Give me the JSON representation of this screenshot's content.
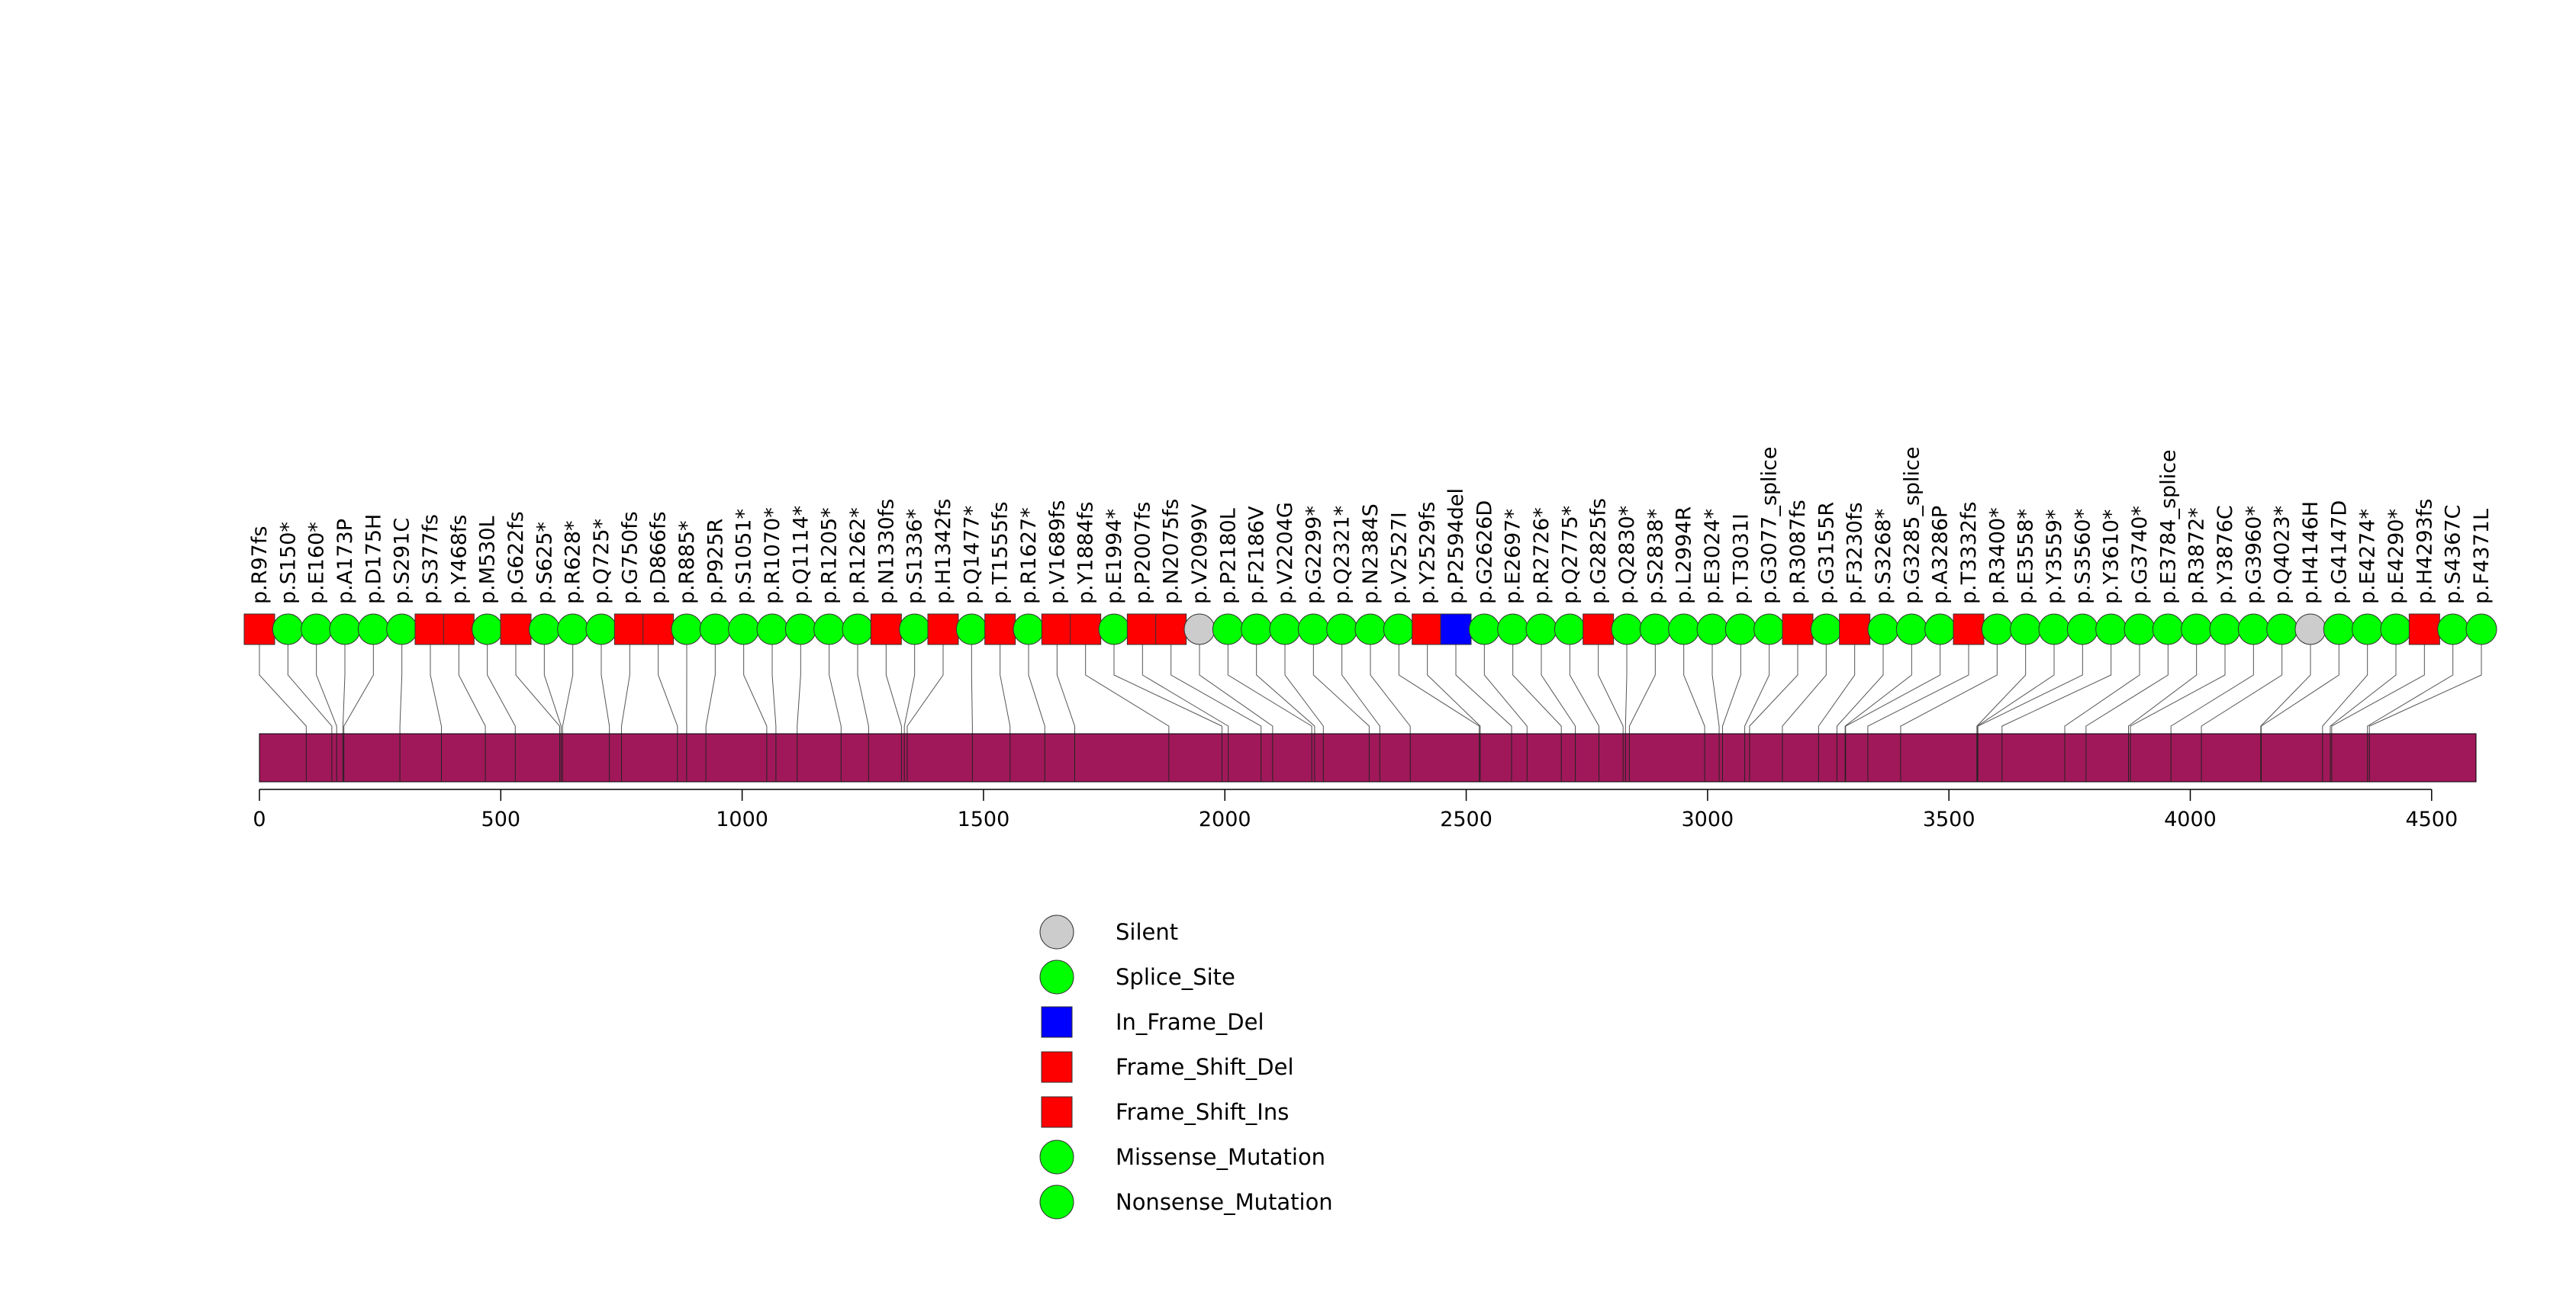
{
  "chart_data": {
    "type": "lollipop",
    "protein_length": 4592,
    "x_axis": {
      "ticks": [
        0,
        500,
        1000,
        1500,
        2000,
        2500,
        3000,
        3500,
        4000,
        4500
      ],
      "xlim": [
        0,
        4592
      ]
    },
    "colors": {
      "domain_bar": "#A0185A",
      "Silent": "#CCCCCC",
      "Splice_Site": "#00FF00",
      "In_Frame_Del": "#0000FF",
      "Frame_Shift_Del": "#FF0000",
      "Frame_Shift_Ins": "#FF0000",
      "Missense_Mutation": "#00FF00",
      "Nonsense_Mutation": "#00FF00"
    },
    "legend": [
      {
        "label": "Silent",
        "shape": "circle",
        "color": "#CCCCCC"
      },
      {
        "label": "Splice_Site",
        "shape": "circle",
        "color": "#00FF00"
      },
      {
        "label": "In_Frame_Del",
        "shape": "square",
        "color": "#0000FF"
      },
      {
        "label": "Frame_Shift_Del",
        "shape": "square",
        "color": "#FF0000"
      },
      {
        "label": "Frame_Shift_Ins",
        "shape": "square",
        "color": "#FF0000"
      },
      {
        "label": "Missense_Mutation",
        "shape": "circle",
        "color": "#00FF00"
      },
      {
        "label": "Nonsense_Mutation",
        "shape": "circle",
        "color": "#00FF00"
      }
    ],
    "mutations": [
      {
        "label": "p.R97fs",
        "pos": 97,
        "type": "Frame_Shift_Del"
      },
      {
        "label": "p.S150*",
        "pos": 150,
        "type": "Nonsense_Mutation"
      },
      {
        "label": "p.E160*",
        "pos": 160,
        "type": "Nonsense_Mutation"
      },
      {
        "label": "p.A173P",
        "pos": 173,
        "type": "Missense_Mutation"
      },
      {
        "label": "p.D175H",
        "pos": 175,
        "type": "Missense_Mutation"
      },
      {
        "label": "p.S291C",
        "pos": 291,
        "type": "Missense_Mutation"
      },
      {
        "label": "p.S377fs",
        "pos": 377,
        "type": "Frame_Shift_Del"
      },
      {
        "label": "p.Y468fs",
        "pos": 468,
        "type": "Frame_Shift_Ins"
      },
      {
        "label": "p.M530L",
        "pos": 530,
        "type": "Missense_Mutation"
      },
      {
        "label": "p.G622fs",
        "pos": 622,
        "type": "Frame_Shift_Del"
      },
      {
        "label": "p.S625*",
        "pos": 625,
        "type": "Nonsense_Mutation"
      },
      {
        "label": "p.R628*",
        "pos": 628,
        "type": "Nonsense_Mutation"
      },
      {
        "label": "p.Q725*",
        "pos": 725,
        "type": "Nonsense_Mutation"
      },
      {
        "label": "p.G750fs",
        "pos": 750,
        "type": "Frame_Shift_Del"
      },
      {
        "label": "p.D866fs",
        "pos": 866,
        "type": "Frame_Shift_Del"
      },
      {
        "label": "p.R885*",
        "pos": 885,
        "type": "Nonsense_Mutation"
      },
      {
        "label": "p.P925R",
        "pos": 925,
        "type": "Missense_Mutation"
      },
      {
        "label": "p.S1051*",
        "pos": 1051,
        "type": "Nonsense_Mutation"
      },
      {
        "label": "p.R1070*",
        "pos": 1070,
        "type": "Nonsense_Mutation"
      },
      {
        "label": "p.Q1114*",
        "pos": 1114,
        "type": "Nonsense_Mutation"
      },
      {
        "label": "p.R1205*",
        "pos": 1205,
        "type": "Nonsense_Mutation"
      },
      {
        "label": "p.R1262*",
        "pos": 1262,
        "type": "Nonsense_Mutation"
      },
      {
        "label": "p.N1330fs",
        "pos": 1330,
        "type": "Frame_Shift_Del"
      },
      {
        "label": "p.S1336*",
        "pos": 1336,
        "type": "Nonsense_Mutation"
      },
      {
        "label": "p.H1342fs",
        "pos": 1342,
        "type": "Frame_Shift_Del"
      },
      {
        "label": "p.Q1477*",
        "pos": 1477,
        "type": "Nonsense_Mutation"
      },
      {
        "label": "p.T1555fs",
        "pos": 1555,
        "type": "Frame_Shift_Del"
      },
      {
        "label": "p.R1627*",
        "pos": 1627,
        "type": "Nonsense_Mutation"
      },
      {
        "label": "p.V1689fs",
        "pos": 1689,
        "type": "Frame_Shift_Del"
      },
      {
        "label": "p.Y1884fs",
        "pos": 1884,
        "type": "Frame_Shift_Ins"
      },
      {
        "label": "p.E1994*",
        "pos": 1994,
        "type": "Nonsense_Mutation"
      },
      {
        "label": "p.P2007fs",
        "pos": 2007,
        "type": "Frame_Shift_Del"
      },
      {
        "label": "p.N2075fs",
        "pos": 2075,
        "type": "Frame_Shift_Del"
      },
      {
        "label": "p.V2099V",
        "pos": 2099,
        "type": "Silent"
      },
      {
        "label": "p.P2180L",
        "pos": 2180,
        "type": "Missense_Mutation"
      },
      {
        "label": "p.F2186V",
        "pos": 2186,
        "type": "Missense_Mutation"
      },
      {
        "label": "p.V2204G",
        "pos": 2204,
        "type": "Missense_Mutation"
      },
      {
        "label": "p.G2299*",
        "pos": 2299,
        "type": "Nonsense_Mutation"
      },
      {
        "label": "p.Q2321*",
        "pos": 2321,
        "type": "Nonsense_Mutation"
      },
      {
        "label": "p.N2384S",
        "pos": 2384,
        "type": "Missense_Mutation"
      },
      {
        "label": "p.V2527I",
        "pos": 2527,
        "type": "Missense_Mutation"
      },
      {
        "label": "p.Y2529fs",
        "pos": 2529,
        "type": "Frame_Shift_Del"
      },
      {
        "label": "p.P2594del",
        "pos": 2594,
        "type": "In_Frame_Del"
      },
      {
        "label": "p.G2626D",
        "pos": 2626,
        "type": "Missense_Mutation"
      },
      {
        "label": "p.E2697*",
        "pos": 2697,
        "type": "Nonsense_Mutation"
      },
      {
        "label": "p.R2726*",
        "pos": 2726,
        "type": "Nonsense_Mutation"
      },
      {
        "label": "p.Q2775*",
        "pos": 2775,
        "type": "Nonsense_Mutation"
      },
      {
        "label": "p.G2825fs",
        "pos": 2825,
        "type": "Frame_Shift_Del"
      },
      {
        "label": "p.Q2830*",
        "pos": 2830,
        "type": "Nonsense_Mutation"
      },
      {
        "label": "p.S2838*",
        "pos": 2838,
        "type": "Nonsense_Mutation"
      },
      {
        "label": "p.L2994R",
        "pos": 2994,
        "type": "Missense_Mutation"
      },
      {
        "label": "p.E3024*",
        "pos": 3024,
        "type": "Nonsense_Mutation"
      },
      {
        "label": "p.T3031I",
        "pos": 3031,
        "type": "Missense_Mutation"
      },
      {
        "label": "p.G3077_splice",
        "pos": 3077,
        "type": "Splice_Site"
      },
      {
        "label": "p.R3087fs",
        "pos": 3087,
        "type": "Frame_Shift_Del"
      },
      {
        "label": "p.G3155R",
        "pos": 3155,
        "type": "Missense_Mutation"
      },
      {
        "label": "p.F3230fs",
        "pos": 3230,
        "type": "Frame_Shift_Del"
      },
      {
        "label": "p.S3268*",
        "pos": 3268,
        "type": "Nonsense_Mutation"
      },
      {
        "label": "p.G3285_splice",
        "pos": 3285,
        "type": "Splice_Site"
      },
      {
        "label": "p.A3286P",
        "pos": 3286,
        "type": "Missense_Mutation"
      },
      {
        "label": "p.T3332fs",
        "pos": 3332,
        "type": "Frame_Shift_Del"
      },
      {
        "label": "p.R3400*",
        "pos": 3400,
        "type": "Nonsense_Mutation"
      },
      {
        "label": "p.E3558*",
        "pos": 3558,
        "type": "Nonsense_Mutation"
      },
      {
        "label": "p.Y3559*",
        "pos": 3559,
        "type": "Nonsense_Mutation"
      },
      {
        "label": "p.S3560*",
        "pos": 3560,
        "type": "Nonsense_Mutation"
      },
      {
        "label": "p.Y3610*",
        "pos": 3610,
        "type": "Nonsense_Mutation"
      },
      {
        "label": "p.G3740*",
        "pos": 3740,
        "type": "Nonsense_Mutation"
      },
      {
        "label": "p.E3784_splice",
        "pos": 3784,
        "type": "Splice_Site"
      },
      {
        "label": "p.R3872*",
        "pos": 3872,
        "type": "Nonsense_Mutation"
      },
      {
        "label": "p.Y3876C",
        "pos": 3876,
        "type": "Missense_Mutation"
      },
      {
        "label": "p.G3960*",
        "pos": 3960,
        "type": "Nonsense_Mutation"
      },
      {
        "label": "p.Q4023*",
        "pos": 4023,
        "type": "Nonsense_Mutation"
      },
      {
        "label": "p.H4146H",
        "pos": 4146,
        "type": "Silent"
      },
      {
        "label": "p.G4147D",
        "pos": 4147,
        "type": "Missense_Mutation"
      },
      {
        "label": "p.E4274*",
        "pos": 4274,
        "type": "Nonsense_Mutation"
      },
      {
        "label": "p.E4290*",
        "pos": 4290,
        "type": "Nonsense_Mutation"
      },
      {
        "label": "p.H4293fs",
        "pos": 4293,
        "type": "Frame_Shift_Del"
      },
      {
        "label": "p.S4367C",
        "pos": 4367,
        "type": "Missense_Mutation"
      },
      {
        "label": "p.F4371L",
        "pos": 4371,
        "type": "Missense_Mutation"
      }
    ]
  }
}
